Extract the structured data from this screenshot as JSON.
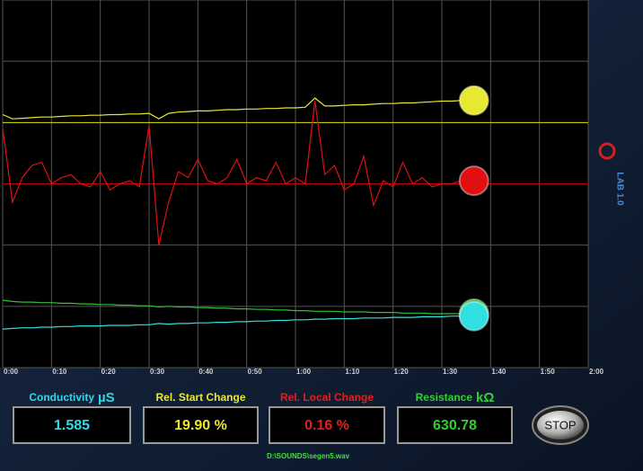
{
  "chart_data": {
    "type": "line",
    "xlim": [
      0,
      120
    ],
    "xticks": [
      {
        "value": 0,
        "label": "0:00"
      },
      {
        "value": 10,
        "label": "0:10"
      },
      {
        "value": 20,
        "label": "0:20"
      },
      {
        "value": 30,
        "label": "0:30"
      },
      {
        "value": 40,
        "label": "0:40"
      },
      {
        "value": 50,
        "label": "0:50"
      },
      {
        "value": 60,
        "label": "1:00"
      },
      {
        "value": 70,
        "label": "1:10"
      },
      {
        "value": 80,
        "label": "1:20"
      },
      {
        "value": 90,
        "label": "1:30"
      },
      {
        "value": 100,
        "label": "1:40"
      },
      {
        "value": 110,
        "label": "1:50"
      },
      {
        "value": 120,
        "label": "2:00"
      }
    ],
    "ylim": [
      0,
      6
    ],
    "yticks": [
      0,
      1,
      2,
      3,
      4,
      5,
      6
    ],
    "grid": true,
    "hlines": [
      {
        "value": 4,
        "color": "#d8d800"
      },
      {
        "value": 3,
        "color": "#c00000"
      }
    ],
    "x": [
      0,
      2,
      4,
      6,
      8,
      10,
      12,
      14,
      16,
      18,
      20,
      22,
      24,
      26,
      28,
      30,
      32,
      34,
      36,
      38,
      40,
      42,
      44,
      46,
      48,
      50,
      52,
      54,
      56,
      58,
      60,
      62,
      64,
      66,
      68,
      70,
      72,
      74,
      76,
      78,
      80,
      82,
      84,
      86,
      88,
      90,
      92,
      94
    ],
    "series": [
      {
        "color": "#e8e830",
        "values": [
          4.13,
          4.06,
          4.07,
          4.08,
          4.09,
          4.09,
          4.1,
          4.11,
          4.11,
          4.12,
          4.12,
          4.13,
          4.13,
          4.14,
          4.14,
          4.15,
          4.06,
          4.15,
          4.17,
          4.18,
          4.19,
          4.19,
          4.2,
          4.21,
          4.21,
          4.22,
          4.22,
          4.23,
          4.23,
          4.24,
          4.24,
          4.25,
          4.4,
          4.27,
          4.27,
          4.28,
          4.29,
          4.29,
          4.3,
          4.31,
          4.31,
          4.32,
          4.32,
          4.33,
          4.34,
          4.35,
          4.35,
          4.36
        ]
      },
      {
        "color": "#e01010",
        "values": [
          3.9,
          2.7,
          3.1,
          3.3,
          3.35,
          3.0,
          3.1,
          3.15,
          3.0,
          2.95,
          3.2,
          2.9,
          3.0,
          3.05,
          2.95,
          3.95,
          2.0,
          2.7,
          3.2,
          3.1,
          3.4,
          3.05,
          3.0,
          3.1,
          3.4,
          3.0,
          3.1,
          3.05,
          3.35,
          3.0,
          3.1,
          3.0,
          4.35,
          3.15,
          3.3,
          2.9,
          3.0,
          3.45,
          2.65,
          3.05,
          2.95,
          3.35,
          3.0,
          3.1,
          2.95,
          3.0,
          3.0,
          3.05
        ]
      },
      {
        "color": "#30c030",
        "values": [
          1.1,
          1.08,
          1.07,
          1.07,
          1.06,
          1.06,
          1.05,
          1.05,
          1.04,
          1.04,
          1.03,
          1.03,
          1.02,
          1.02,
          1.01,
          1.01,
          0.99,
          1.0,
          0.99,
          0.99,
          0.98,
          0.98,
          0.97,
          0.97,
          0.96,
          0.96,
          0.95,
          0.95,
          0.94,
          0.94,
          0.93,
          0.93,
          0.92,
          0.92,
          0.92,
          0.91,
          0.91,
          0.91,
          0.9,
          0.9,
          0.9,
          0.89,
          0.89,
          0.89,
          0.88,
          0.88,
          0.88,
          0.88
        ]
      },
      {
        "color": "#30e0e0",
        "values": [
          0.63,
          0.64,
          0.65,
          0.65,
          0.66,
          0.66,
          0.67,
          0.67,
          0.68,
          0.68,
          0.68,
          0.69,
          0.69,
          0.69,
          0.7,
          0.7,
          0.72,
          0.71,
          0.72,
          0.72,
          0.73,
          0.73,
          0.74,
          0.74,
          0.75,
          0.75,
          0.76,
          0.76,
          0.77,
          0.77,
          0.78,
          0.78,
          0.79,
          0.79,
          0.8,
          0.8,
          0.8,
          0.81,
          0.81,
          0.81,
          0.82,
          0.82,
          0.82,
          0.83,
          0.83,
          0.83,
          0.84,
          0.84
        ]
      }
    ]
  },
  "readouts": [
    {
      "label": "Conductivity",
      "unit": "µS",
      "value": "1.585",
      "color": "#30d8e8"
    },
    {
      "label": "Rel. Start Change",
      "value": "19.90 %",
      "color": "#e8e830"
    },
    {
      "label": "Rel. Local Change",
      "value": "0.16 %",
      "color": "#e02020"
    },
    {
      "label": "Resistance",
      "unit": "kΩ",
      "value": "630.78",
      "color": "#30d030"
    }
  ],
  "stop_button": "STOP",
  "file_path": "D:\\SOUNDS\\segen5.wav",
  "sidebar": {
    "logo": "LAB 1.0"
  }
}
